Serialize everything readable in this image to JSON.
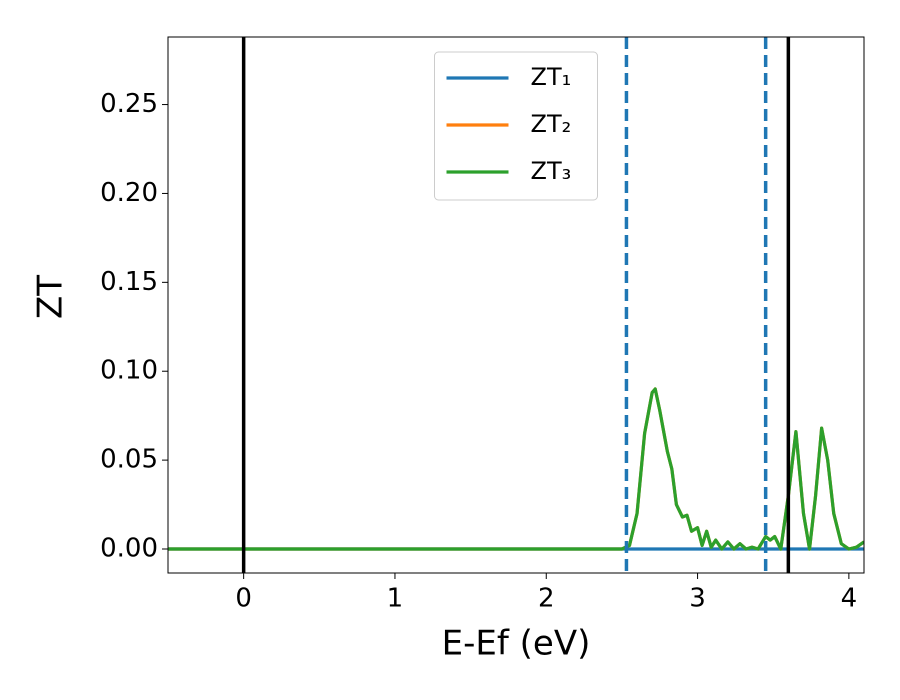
{
  "chart_data": {
    "type": "line",
    "y_label": "ZT",
    "x_label": "E-Ef (eV)",
    "x": [
      -0.5,
      2.5,
      2.55,
      2.6,
      2.65,
      2.7,
      2.72,
      2.75,
      2.8,
      2.83,
      2.86,
      2.9,
      2.93,
      2.96,
      3.0,
      3.03,
      3.06,
      3.09,
      3.12,
      3.16,
      3.2,
      3.24,
      3.28,
      3.32,
      3.36,
      3.4,
      3.45,
      3.48,
      3.51,
      3.55,
      3.6,
      3.65,
      3.7,
      3.74,
      3.78,
      3.82,
      3.86,
      3.9,
      3.95,
      4.0,
      4.05,
      4.1
    ],
    "series": [
      {
        "name": "ZT₁",
        "color": "#1f77b4",
        "values": [
          0,
          0,
          0,
          0,
          0,
          0,
          0,
          0,
          0,
          0,
          0,
          0,
          0,
          0,
          0,
          0,
          0,
          0,
          0,
          0,
          0,
          0,
          0,
          0,
          0,
          0,
          0,
          0,
          0,
          0,
          0,
          0,
          0,
          0,
          0,
          0,
          0,
          0,
          0,
          0,
          0,
          0
        ]
      },
      {
        "name": "ZT₂",
        "color": "#ff7f0e",
        "values": [
          0,
          0,
          0.002,
          0.02,
          0.065,
          0.088,
          0.09,
          0.078,
          0.055,
          0.045,
          0.025,
          0.018,
          0.019,
          0.01,
          0.012,
          0.002,
          0.01,
          0.001,
          0.005,
          0,
          0.004,
          0,
          0.003,
          0,
          0.001,
          0,
          0.007,
          0.005,
          0.007,
          0,
          0.03,
          0.066,
          0.02,
          0,
          0.03,
          0.068,
          0.05,
          0.02,
          0.003,
          0,
          0.001,
          0.004
        ]
      },
      {
        "name": "ZT₃",
        "color": "#2ca02c",
        "values": [
          0,
          0,
          0.002,
          0.02,
          0.065,
          0.088,
          0.09,
          0.078,
          0.055,
          0.045,
          0.025,
          0.018,
          0.019,
          0.01,
          0.012,
          0.002,
          0.01,
          0.001,
          0.005,
          0,
          0.004,
          0,
          0.003,
          0,
          0.001,
          0,
          0.007,
          0.005,
          0.007,
          0,
          0.03,
          0.066,
          0.02,
          0,
          0.03,
          0.068,
          0.05,
          0.02,
          0.003,
          0,
          0.001,
          0.004
        ]
      }
    ],
    "vlines": [
      {
        "x": 0,
        "color": "#000000",
        "style": "solid"
      },
      {
        "x": 3.6,
        "color": "#000000",
        "style": "solid"
      },
      {
        "x": 2.53,
        "color": "#1f77b4",
        "style": "dashed"
      },
      {
        "x": 3.45,
        "color": "#1f77b4",
        "style": "dashed"
      }
    ],
    "xlim": [
      -0.5,
      4.1
    ],
    "ylim": [
      -0.0135,
      0.288
    ],
    "xticks": [
      0,
      1,
      2,
      3,
      4
    ],
    "yticks": [
      {
        "value": 0,
        "label": "0.00"
      },
      {
        "value": 0.05,
        "label": "0.05"
      },
      {
        "value": 0.1,
        "label": "0.10"
      },
      {
        "value": 0.15,
        "label": "0.15"
      },
      {
        "value": 0.2,
        "label": "0.20"
      },
      {
        "value": 0.25,
        "label": "0.25"
      }
    ],
    "legend": "upper center",
    "grid": false
  }
}
